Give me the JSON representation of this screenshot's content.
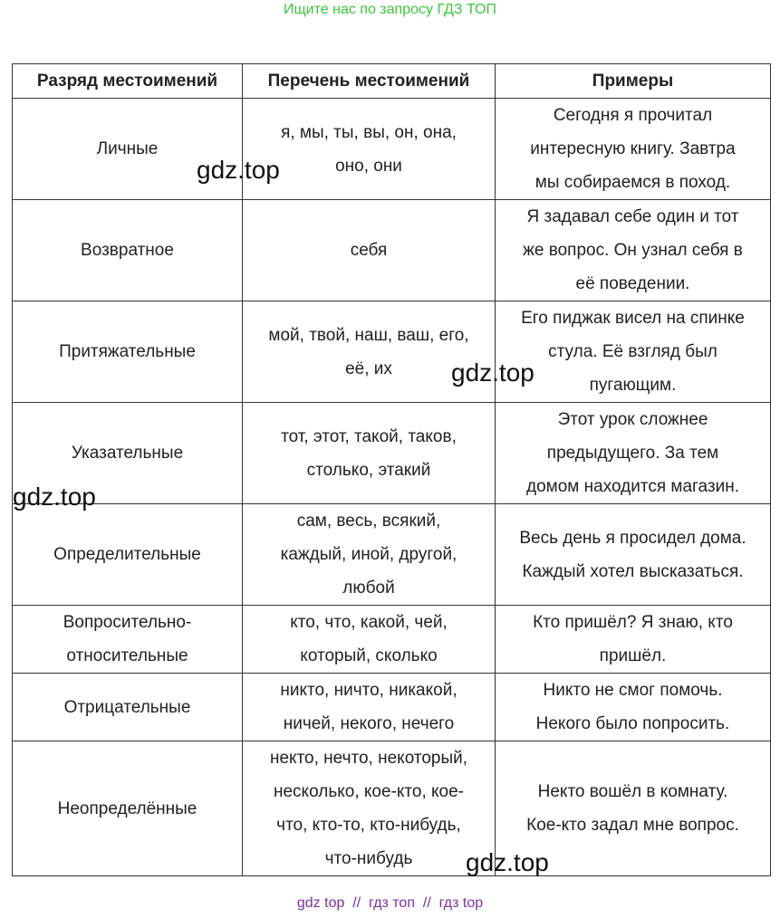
{
  "header_note": "Ищите нас по запросу ГДЗ ТОП",
  "table": {
    "columns": [
      "Разряд местоимений",
      "Перечень местоимений",
      "Примеры"
    ],
    "rows": [
      [
        [
          "Личные"
        ],
        [
          "я, мы, ты, вы, он, она,",
          "оно, они"
        ],
        [
          "Сегодня я прочитал",
          "интересную книгу. Завтра",
          "мы собираемся в поход."
        ]
      ],
      [
        [
          "Возвратное"
        ],
        [
          "себя"
        ],
        [
          "Я задавал себе один и тот",
          "же вопрос. Он узнал себя в",
          "её поведении."
        ]
      ],
      [
        [
          "Притяжательные"
        ],
        [
          "мой, твой, наш, ваш, его,",
          "её, их"
        ],
        [
          "Его пиджак висел на спинке",
          "стула. Её взгляд был",
          "пугающим."
        ]
      ],
      [
        [
          "Указательные"
        ],
        [
          "тот, этот, такой, таков,",
          "столько, этакий"
        ],
        [
          "Этот урок сложнее",
          "предыдущего. За тем",
          "домом находится магазин."
        ]
      ],
      [
        [
          "Определительные"
        ],
        [
          "сам, весь, всякий,",
          "каждый, иной, другой,",
          "любой"
        ],
        [
          "Весь день я просидел дома.",
          "Каждый хотел высказаться."
        ]
      ],
      [
        [
          "Вопросительно-",
          "относительные"
        ],
        [
          "кто, что, какой, чей,",
          "который, сколько"
        ],
        [
          "Кто пришёл? Я знаю, кто",
          "пришёл."
        ]
      ],
      [
        [
          "Отрицательные"
        ],
        [
          "никто, ничто, никакой,",
          "ничей, некого, нечего"
        ],
        [
          "Никто не смог помочь.",
          "Некого было попросить."
        ]
      ],
      [
        [
          "Неопределённые"
        ],
        [
          "некто, нечто, некоторый,",
          "несколько, кое-кто, кое-",
          "что, кто-то, кто-нибудь,",
          "что-нибудь"
        ],
        [
          "Некто вошёл в комнату.",
          "Кое-кто задал мне вопрос."
        ]
      ]
    ]
  },
  "watermarks": [
    "gdz.top",
    "gdz.top",
    "gdz.top",
    "gdz.top"
  ],
  "footer": "gdz top  //  гдз топ  //  гдз top"
}
